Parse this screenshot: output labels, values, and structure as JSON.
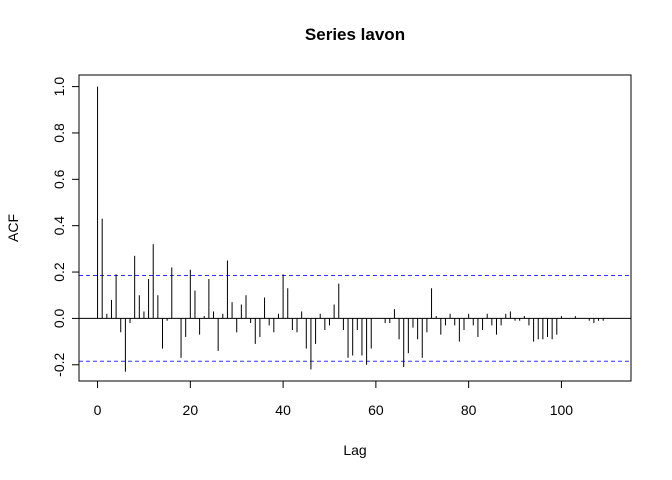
{
  "chart_data": {
    "type": "bar",
    "title": "Series  lavon",
    "xlabel": "Lag",
    "ylabel": "ACF",
    "xlim": [
      -4,
      115
    ],
    "ylim": [
      -0.27,
      1.05
    ],
    "x_ticks": [
      0,
      20,
      40,
      60,
      80,
      100
    ],
    "x_tick_labels": [
      "0",
      "20",
      "40",
      "60",
      "80",
      "100"
    ],
    "y_ticks": [
      -0.2,
      0.0,
      0.2,
      0.4,
      0.6,
      0.8,
      1.0
    ],
    "y_tick_labels": [
      "-0.2",
      "0.0",
      "0.2",
      "0.4",
      "0.6",
      "0.8",
      "1.0"
    ],
    "confidence_bound": 0.185,
    "bound_color": "#3333ff",
    "bar_color": "#000000",
    "series": [
      {
        "lag": [
          0,
          1,
          2,
          3,
          4,
          5,
          6,
          7,
          8,
          9,
          10,
          11,
          12,
          13,
          14,
          15,
          16,
          17,
          18,
          19,
          20,
          21,
          22,
          23,
          24,
          25,
          26,
          27,
          28,
          29,
          30,
          31,
          32,
          33,
          34,
          35,
          36,
          37,
          38,
          39,
          40,
          41,
          42,
          43,
          44,
          45,
          46,
          47,
          48,
          49,
          50,
          51,
          52,
          53,
          54,
          55,
          56,
          57,
          58,
          59,
          60,
          61,
          62,
          63,
          64,
          65,
          66,
          67,
          68,
          69,
          70,
          71,
          72,
          73,
          74,
          75,
          76,
          77,
          78,
          79,
          80,
          81,
          82,
          83,
          84,
          85,
          86,
          87,
          88,
          89,
          90,
          91,
          92,
          93,
          94,
          95,
          96,
          97,
          98,
          99,
          100,
          101,
          102,
          103,
          104,
          105,
          106,
          107,
          108,
          109
        ],
        "acf": [
          1.0,
          0.43,
          0.02,
          0.08,
          0.19,
          -0.06,
          -0.23,
          -0.02,
          0.27,
          0.1,
          0.03,
          0.17,
          0.32,
          0.1,
          -0.13,
          -0.01,
          0.22,
          0.0,
          -0.17,
          -0.08,
          0.21,
          0.12,
          -0.07,
          0.01,
          0.17,
          0.03,
          -0.14,
          0.02,
          0.25,
          0.07,
          -0.06,
          0.06,
          0.1,
          -0.02,
          -0.11,
          -0.08,
          0.09,
          -0.03,
          -0.06,
          0.02,
          0.19,
          0.13,
          -0.05,
          -0.06,
          0.03,
          -0.13,
          -0.22,
          -0.11,
          0.02,
          -0.05,
          -0.03,
          0.06,
          0.15,
          -0.05,
          -0.17,
          -0.16,
          -0.05,
          -0.16,
          -0.2,
          -0.13,
          0.0,
          0.0,
          -0.02,
          -0.02,
          0.04,
          -0.09,
          -0.21,
          -0.15,
          -0.04,
          -0.09,
          -0.17,
          -0.06,
          0.13,
          0.01,
          -0.07,
          -0.03,
          0.02,
          -0.03,
          -0.1,
          -0.05,
          0.02,
          -0.03,
          -0.08,
          -0.05,
          0.02,
          -0.03,
          -0.07,
          -0.03,
          0.02,
          0.03,
          -0.01,
          -0.01,
          0.01,
          -0.03,
          -0.1,
          -0.09,
          -0.09,
          -0.08,
          -0.09,
          -0.07,
          0.01,
          0.0,
          0.0,
          0.01,
          0.0,
          0.0,
          -0.01,
          -0.02,
          -0.01,
          -0.01
        ]
      }
    ]
  }
}
